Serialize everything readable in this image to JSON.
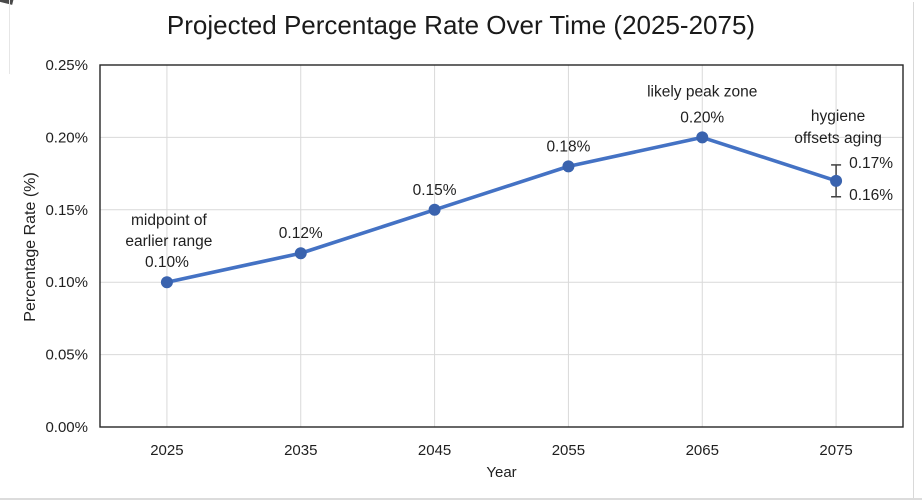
{
  "chart_data": {
    "type": "line",
    "title": "Projected Percentage Rate Over Time (2025-2075)",
    "xlabel": "Year",
    "ylabel": "Percentage Rate (%)",
    "categories": [
      "2025",
      "2035",
      "2045",
      "2055",
      "2065",
      "2075"
    ],
    "series": [
      {
        "values": [
          0.1,
          0.12,
          0.15,
          0.18,
          0.2,
          0.17
        ]
      }
    ],
    "data_labels": [
      "0.10%",
      "0.12%",
      "0.15%",
      "0.18%",
      "0.20%",
      null
    ],
    "ylim": [
      0,
      0.25
    ],
    "ytick_step": 0.05,
    "ytick_labels": [
      "0.00%",
      "0.05%",
      "0.10%",
      "0.15%",
      "0.20%",
      "0.25%"
    ],
    "grid": true,
    "legend": "none",
    "error_bar": {
      "point_index": 5,
      "plus": 0.011,
      "minus": 0.011,
      "upper_label": "0.17%",
      "lower_label": "0.16%"
    },
    "annotations": [
      {
        "lines": [
          "midpoint of",
          "earlier range"
        ],
        "point_index": 0,
        "dx": 2,
        "dys": [
          -42,
          -21
        ]
      },
      {
        "lines": [
          "likely peak zone"
        ],
        "point_index": 4,
        "dx": 0,
        "dys": [
          -26
        ]
      },
      {
        "lines": [
          "hygiene",
          "offsets aging"
        ],
        "point_index": 5,
        "dx": 2,
        "dys": [
          -47,
          -25
        ]
      }
    ],
    "colors": {
      "line": "#4472C4",
      "marker": "#3A63AE",
      "grid": "#D9D9D9",
      "frame": "#262626",
      "error_bar": "#404040",
      "text": "#1F1F1F"
    }
  }
}
